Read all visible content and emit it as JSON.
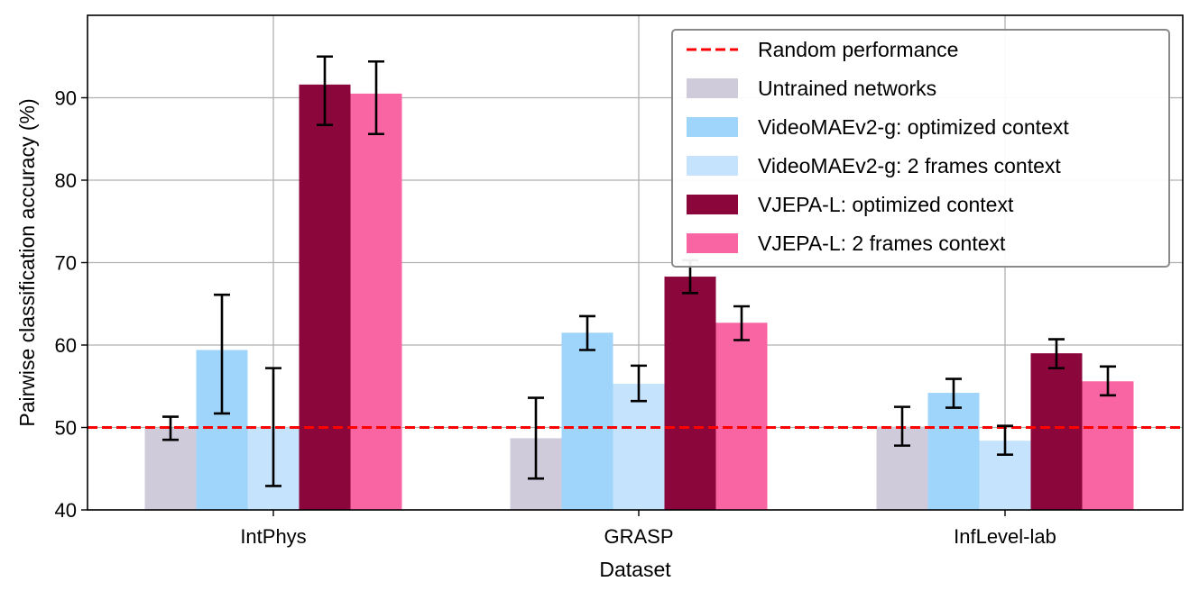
{
  "chart_data": {
    "type": "bar",
    "xlabel": "Dataset",
    "ylabel": "Pairwise classification accuracy (%)",
    "ylim": [
      40,
      100
    ],
    "yticks": [
      40,
      50,
      60,
      70,
      80,
      90
    ],
    "categories": [
      "IntPhys",
      "GRASP",
      "InfLevel-lab"
    ],
    "grid": true,
    "legend_position": "top-right",
    "reference_line": {
      "name": "Random performance",
      "value": 50,
      "color": "#ff0000",
      "style": "dashed"
    },
    "series": [
      {
        "name": "Untrained networks",
        "color": "#d0cbdb",
        "values": [
          49.9,
          48.7,
          50.1
        ],
        "errors": [
          [
            48.5,
            51.3
          ],
          [
            43.8,
            53.6
          ],
          [
            47.8,
            52.5
          ]
        ]
      },
      {
        "name": "VideoMAEv2-g: optimized context",
        "color": "#9fd4fb",
        "values": [
          59.4,
          61.5,
          54.2
        ],
        "errors": [
          [
            51.7,
            66.1
          ],
          [
            59.4,
            63.5
          ],
          [
            52.4,
            55.9
          ]
        ]
      },
      {
        "name": "VideoMAEv2-g: 2 frames context",
        "color": "#c6e3fd",
        "values": [
          50.0,
          55.3,
          48.4
        ],
        "errors": [
          [
            42.9,
            57.2
          ],
          [
            53.2,
            57.5
          ],
          [
            46.7,
            50.2
          ]
        ]
      },
      {
        "name": "VJEPA-L: optimized context",
        "color": "#8b063b",
        "values": [
          91.6,
          68.3,
          59.0
        ],
        "errors": [
          [
            86.7,
            95.0
          ],
          [
            66.3,
            70.3
          ],
          [
            57.2,
            60.7
          ]
        ]
      },
      {
        "name": "VJEPA-L: 2 frames context",
        "color": "#f965a2",
        "values": [
          90.5,
          62.7,
          55.6
        ],
        "errors": [
          [
            85.6,
            94.4
          ],
          [
            60.6,
            64.7
          ],
          [
            53.9,
            57.4
          ]
        ]
      }
    ]
  }
}
